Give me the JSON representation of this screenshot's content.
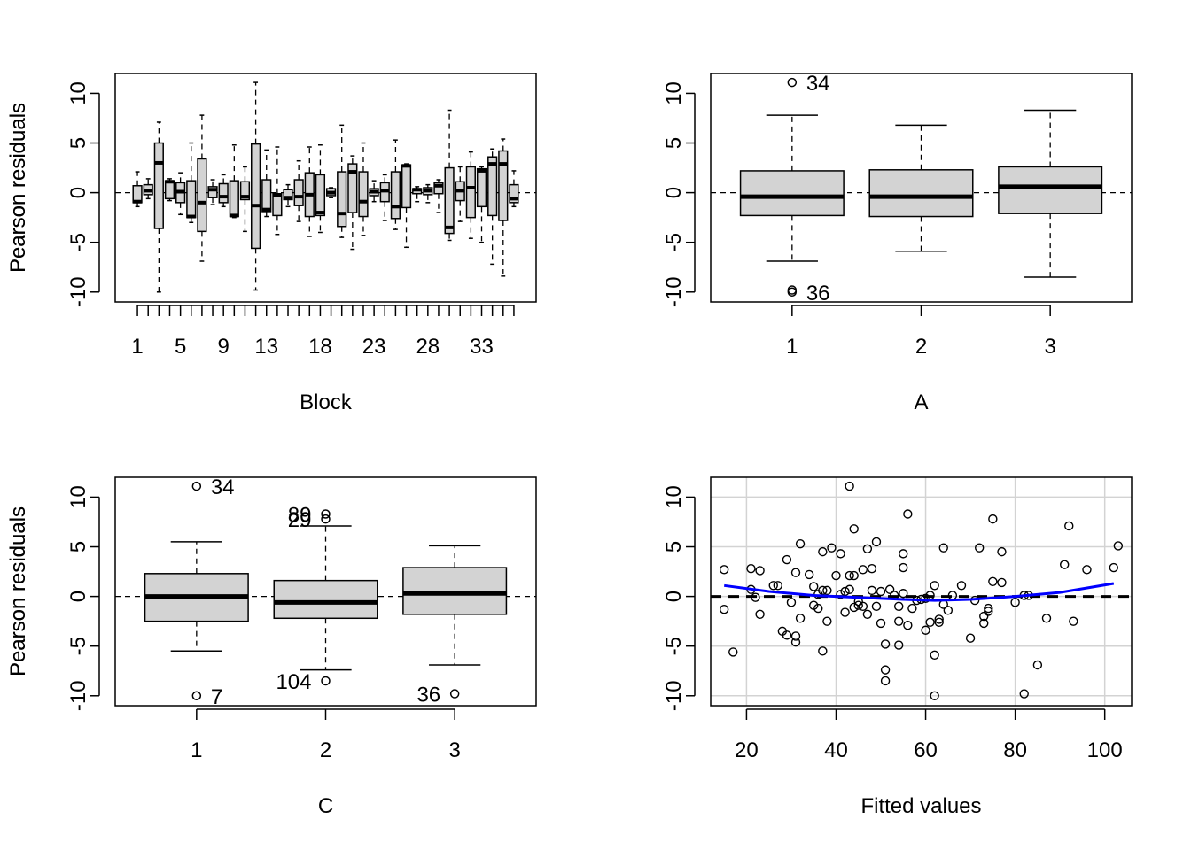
{
  "chart_data": [
    {
      "type": "boxplot",
      "xlabel": "Block",
      "ylabel": "Pearson residuals",
      "ylim": [
        -11,
        12
      ],
      "yticks": [
        -10,
        -5,
        0,
        5,
        10
      ],
      "categories": [
        "1",
        "2",
        "3",
        "4",
        "5",
        "6",
        "7",
        "8",
        "9",
        "10",
        "11",
        "12",
        "13",
        "14",
        "15",
        "16",
        "17",
        "18",
        "19",
        "20",
        "21",
        "22",
        "23",
        "24",
        "25",
        "26",
        "27",
        "28",
        "29",
        "30",
        "31",
        "32",
        "33",
        "34",
        "35",
        "36"
      ],
      "x_tick_labels": [
        "1",
        "5",
        "9",
        "13",
        "18",
        "23",
        "28",
        "33"
      ],
      "reference_line": 0,
      "boxes": [
        {
          "min": -1.4,
          "q1": -1.0,
          "median": -0.9,
          "q3": 0.7,
          "max": 2.1
        },
        {
          "min": -0.6,
          "q1": -0.2,
          "median": 0.2,
          "q3": 0.8,
          "max": 1.4
        },
        {
          "min": -10.0,
          "q1": -3.6,
          "median": 3.0,
          "q3": 5.0,
          "max": 7.1
        },
        {
          "min": -0.8,
          "q1": -0.6,
          "median": 1.1,
          "q3": 1.2,
          "max": 1.4
        },
        {
          "min": -2.2,
          "q1": -1.0,
          "median": 0.1,
          "q3": 1.0,
          "max": 2.0
        },
        {
          "min": -3.0,
          "q1": -2.5,
          "median": -2.4,
          "q3": 1.2,
          "max": 5.0
        },
        {
          "min": -6.9,
          "q1": -3.9,
          "median": -1.0,
          "q3": 3.4,
          "max": 7.8
        },
        {
          "min": -1.2,
          "q1": -0.5,
          "median": 0.3,
          "q3": 0.6,
          "max": 1.3
        },
        {
          "min": -1.4,
          "q1": -1.0,
          "median": -0.4,
          "q3": 0.9,
          "max": 1.8
        },
        {
          "min": -2.5,
          "q1": -2.4,
          "median": -2.3,
          "q3": 1.2,
          "max": 4.8
        },
        {
          "min": -3.9,
          "q1": -0.7,
          "median": -0.4,
          "q3": 1.1,
          "max": 2.6
        },
        {
          "min": -9.8,
          "q1": -5.6,
          "median": -1.3,
          "q3": 4.9,
          "max": 11.1
        },
        {
          "min": -2.4,
          "q1": -1.9,
          "median": -1.7,
          "q3": 1.3,
          "max": 4.3
        },
        {
          "min": -4.2,
          "q1": -2.3,
          "median": -0.3,
          "q3": -0.1,
          "max": 4.6
        },
        {
          "min": -1.4,
          "q1": -0.7,
          "median": -0.5,
          "q3": 0.3,
          "max": 0.8
        },
        {
          "min": -2.9,
          "q1": -1.3,
          "median": -0.4,
          "q3": 1.3,
          "max": 3.2
        },
        {
          "min": -4.4,
          "q1": -2.4,
          "median": -0.2,
          "q3": 2.0,
          "max": 4.6
        },
        {
          "min": -4.0,
          "q1": -2.3,
          "median": -2.0,
          "q3": 1.8,
          "max": 4.8
        },
        {
          "min": -0.5,
          "q1": -0.3,
          "median": 0.0,
          "q3": 0.4,
          "max": 0.5
        },
        {
          "min": -4.5,
          "q1": -3.4,
          "median": -2.1,
          "q3": 2.1,
          "max": 6.8
        },
        {
          "min": -5.7,
          "q1": -2.0,
          "median": 2.1,
          "q3": 2.9,
          "max": 3.7
        },
        {
          "min": -4.3,
          "q1": -2.4,
          "median": -0.9,
          "q3": 2.1,
          "max": 5.0
        },
        {
          "min": -0.9,
          "q1": -0.3,
          "median": 0.1,
          "q3": 0.4,
          "max": 1.2
        },
        {
          "min": -2.8,
          "q1": -0.9,
          "median": 0.2,
          "q3": 1.0,
          "max": 1.8
        },
        {
          "min": -3.7,
          "q1": -2.6,
          "median": -1.4,
          "q3": 2.1,
          "max": 5.3
        },
        {
          "min": -5.5,
          "q1": -1.5,
          "median": 2.7,
          "q3": 2.8,
          "max": 2.9
        },
        {
          "min": -0.9,
          "q1": -0.1,
          "median": 0.3,
          "q3": 0.4,
          "max": 0.6
        },
        {
          "min": -1.0,
          "q1": -0.2,
          "median": 0.2,
          "q3": 0.5,
          "max": 0.8
        },
        {
          "min": -2.0,
          "q1": -0.1,
          "median": 0.7,
          "q3": 1.0,
          "max": 1.3
        },
        {
          "min": -4.8,
          "q1": -4.1,
          "median": -3.5,
          "q3": 2.5,
          "max": 8.3
        },
        {
          "min": -2.9,
          "q1": -0.8,
          "median": 0.2,
          "q3": 1.1,
          "max": 2.6
        },
        {
          "min": -4.6,
          "q1": -2.5,
          "median": 0.5,
          "q3": 2.6,
          "max": 4.1
        },
        {
          "min": -5.0,
          "q1": -1.4,
          "median": 2.2,
          "q3": 2.4,
          "max": 2.6
        },
        {
          "min": -7.2,
          "q1": -2.3,
          "median": 2.9,
          "q3": 3.6,
          "max": 4.4
        },
        {
          "min": -8.4,
          "q1": -2.8,
          "median": 2.9,
          "q3": 4.2,
          "max": 5.4
        },
        {
          "min": -1.4,
          "q1": -1.0,
          "median": -0.6,
          "q3": 0.8,
          "max": 2.2
        }
      ]
    },
    {
      "type": "boxplot",
      "xlabel": "A",
      "ylabel": "Pearson residuals",
      "ylim": [
        -11,
        12
      ],
      "yticks": [
        -10,
        -5,
        0,
        5,
        10
      ],
      "categories": [
        "1",
        "2",
        "3"
      ],
      "reference_line": 0,
      "boxes": [
        {
          "min": -6.9,
          "q1": -2.3,
          "median": -0.4,
          "q3": 2.2,
          "max": 7.8,
          "outliers": [
            11.1,
            -9.8,
            -10.0
          ]
        },
        {
          "min": -5.9,
          "q1": -2.4,
          "median": -0.4,
          "q3": 2.3,
          "max": 6.8,
          "outliers": []
        },
        {
          "min": -8.5,
          "q1": -2.1,
          "median": 0.6,
          "q3": 2.6,
          "max": 8.3,
          "outliers": []
        }
      ],
      "annotations": [
        {
          "label": "34",
          "category": "1",
          "y": 11.1
        },
        {
          "label": "36",
          "category": "1",
          "y": -10.0
        }
      ]
    },
    {
      "type": "boxplot",
      "xlabel": "C",
      "ylabel": "Pearson residuals",
      "ylim": [
        -11,
        12
      ],
      "yticks": [
        -10,
        -5,
        0,
        5,
        10
      ],
      "categories": [
        "1",
        "2",
        "3"
      ],
      "reference_line": 0,
      "boxes": [
        {
          "min": -5.5,
          "q1": -2.5,
          "median": 0.0,
          "q3": 2.3,
          "max": 5.5,
          "outliers": [
            11.1,
            -10.0
          ]
        },
        {
          "min": -7.4,
          "q1": -2.2,
          "median": -0.6,
          "q3": 1.6,
          "max": 7.1,
          "outliers": [
            8.3,
            7.8,
            -8.5
          ]
        },
        {
          "min": -6.9,
          "q1": -1.8,
          "median": 0.3,
          "q3": 2.9,
          "max": 5.1,
          "outliers": [
            -9.8
          ]
        }
      ],
      "annotations": [
        {
          "label": "34",
          "category": "1",
          "y": 11.1
        },
        {
          "label": "7",
          "category": "1",
          "y": -10.0
        },
        {
          "label": "89",
          "category": "2",
          "y": 8.3
        },
        {
          "label": "29",
          "category": "2",
          "y": 7.8
        },
        {
          "label": "104",
          "category": "2",
          "y": -8.5
        },
        {
          "label": "36",
          "category": "3",
          "y": -9.8
        }
      ]
    },
    {
      "type": "scatter",
      "xlabel": "Fitted values",
      "ylabel": "Pearson residuals",
      "xlim": [
        12,
        106
      ],
      "ylim": [
        -11,
        12
      ],
      "xticks": [
        20,
        40,
        60,
        80,
        100
      ],
      "yticks": [
        -10,
        -5,
        0,
        5,
        10
      ],
      "grid": true,
      "reference_line": 0,
      "smooth_color": "#0000ff",
      "points": [
        [
          15,
          2.7
        ],
        [
          15,
          -1.3
        ],
        [
          17,
          -5.6
        ],
        [
          21,
          0.7
        ],
        [
          21,
          2.8
        ],
        [
          22,
          -0.1
        ],
        [
          23,
          2.6
        ],
        [
          23,
          -1.8
        ],
        [
          26,
          1.1
        ],
        [
          27,
          1.1
        ],
        [
          28,
          -3.5
        ],
        [
          29,
          3.7
        ],
        [
          29,
          -3.9
        ],
        [
          30,
          -0.6
        ],
        [
          31,
          -4.0
        ],
        [
          31,
          -4.6
        ],
        [
          31,
          2.4
        ],
        [
          32,
          5.3
        ],
        [
          32,
          -2.2
        ],
        [
          34,
          2.2
        ],
        [
          35,
          -0.9
        ],
        [
          35,
          1.0
        ],
        [
          36,
          -1.2
        ],
        [
          36,
          0.2
        ],
        [
          37,
          4.5
        ],
        [
          37,
          0.6
        ],
        [
          37,
          -5.5
        ],
        [
          38,
          0.6
        ],
        [
          38,
          -2.5
        ],
        [
          39,
          4.9
        ],
        [
          40,
          2.1
        ],
        [
          41,
          4.3
        ],
        [
          41,
          0.2
        ],
        [
          42,
          0.5
        ],
        [
          42,
          -1.6
        ],
        [
          43,
          2.1
        ],
        [
          43,
          0.7
        ],
        [
          43,
          11.1
        ],
        [
          44,
          2.1
        ],
        [
          44,
          6.8
        ],
        [
          44,
          -1.1
        ],
        [
          45,
          -0.9
        ],
        [
          45,
          -0.5
        ],
        [
          46,
          -1.0
        ],
        [
          46,
          2.7
        ],
        [
          47,
          -1.8
        ],
        [
          47,
          4.8
        ],
        [
          48,
          0.6
        ],
        [
          48,
          2.8
        ],
        [
          49,
          -1.0
        ],
        [
          49,
          5.5
        ],
        [
          50,
          -2.7
        ],
        [
          50,
          0.5
        ],
        [
          51,
          -4.8
        ],
        [
          51,
          -7.4
        ],
        [
          51,
          -8.5
        ],
        [
          52,
          0.7
        ],
        [
          53,
          0.1
        ],
        [
          54,
          -4.9
        ],
        [
          54,
          -2.5
        ],
        [
          54,
          -1.0
        ],
        [
          55,
          4.3
        ],
        [
          55,
          0.3
        ],
        [
          55,
          2.9
        ],
        [
          56,
          8.3
        ],
        [
          56,
          -2.9
        ],
        [
          57,
          -1.2
        ],
        [
          58,
          -0.4
        ],
        [
          59,
          -0.3
        ],
        [
          60,
          -3.4
        ],
        [
          60,
          -0.2
        ],
        [
          61,
          -2.6
        ],
        [
          61,
          0.1
        ],
        [
          62,
          -5.9
        ],
        [
          62,
          1.1
        ],
        [
          62,
          -10.0
        ],
        [
          63,
          -2.3
        ],
        [
          63,
          -2.6
        ],
        [
          64,
          4.9
        ],
        [
          64,
          -0.8
        ],
        [
          65,
          -1.4
        ],
        [
          66,
          0.1
        ],
        [
          68,
          1.1
        ],
        [
          70,
          -4.2
        ],
        [
          71,
          -0.4
        ],
        [
          72,
          4.9
        ],
        [
          73,
          -2.7
        ],
        [
          73,
          -2.0
        ],
        [
          74,
          -1.5
        ],
        [
          74,
          -1.2
        ],
        [
          75,
          1.5
        ],
        [
          75,
          7.8
        ],
        [
          77,
          4.5
        ],
        [
          77,
          1.4
        ],
        [
          80,
          -0.6
        ],
        [
          82,
          -9.8
        ],
        [
          82,
          0.1
        ],
        [
          83,
          0.1
        ],
        [
          85,
          -6.9
        ],
        [
          87,
          -2.2
        ],
        [
          91,
          3.2
        ],
        [
          92,
          7.1
        ],
        [
          93,
          -2.5
        ],
        [
          96,
          2.7
        ],
        [
          102,
          2.9
        ],
        [
          103,
          5.1
        ]
      ],
      "smooth": [
        [
          15,
          1.1
        ],
        [
          25,
          0.5
        ],
        [
          35,
          0.1
        ],
        [
          45,
          -0.1
        ],
        [
          55,
          -0.3
        ],
        [
          62,
          -0.4
        ],
        [
          70,
          -0.3
        ],
        [
          80,
          0.0
        ],
        [
          90,
          0.4
        ],
        [
          102,
          1.3
        ]
      ]
    }
  ]
}
